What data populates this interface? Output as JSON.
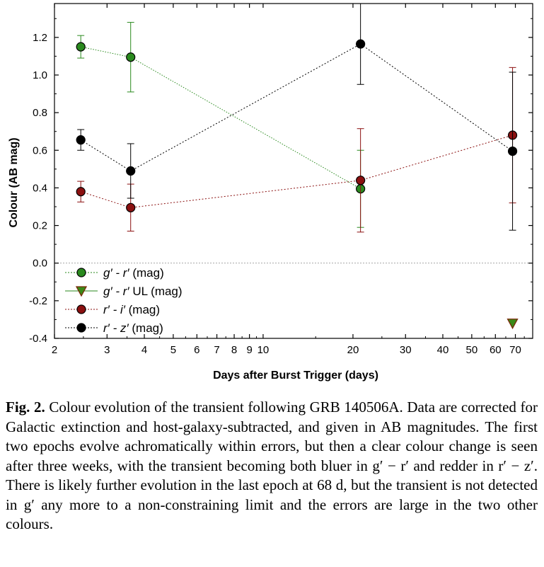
{
  "chart_data": {
    "type": "scatter",
    "xlabel": "Days after Burst Trigger (days)",
    "ylabel": "Colour (AB mag)",
    "xscale": "log",
    "xlim": [
      2,
      80
    ],
    "ylim": [
      -0.4,
      1.38
    ],
    "x_ticks": [
      2,
      3,
      4,
      5,
      6,
      7,
      8,
      9,
      10,
      20,
      30,
      40,
      50,
      60,
      70
    ],
    "y_ticks": [
      -0.4,
      -0.2,
      0.0,
      0.2,
      0.4,
      0.6,
      0.8,
      1.0,
      1.2
    ],
    "y_tick_labels": [
      "-0.4",
      "-0.2",
      "0.0",
      "0.2",
      "0.4",
      "0.6",
      "0.8",
      "1.0",
      "1.2"
    ],
    "zero_line": true,
    "legend_position": "bottom-left",
    "series": [
      {
        "name_parts": [
          "g′ - r′",
          " (mag)"
        ],
        "color": "#2a8a1e",
        "line": "dotted",
        "marker": "circle",
        "x": [
          2.45,
          3.6,
          21.2
        ],
        "y": [
          1.15,
          1.095,
          0.395
        ],
        "yerr": [
          0.06,
          0.185,
          0.205
        ]
      },
      {
        "name_parts": [
          "g′ - r′",
          " UL (mag)"
        ],
        "color": "#2a8a1e",
        "line": "solid",
        "marker": "triangle-down",
        "x": [
          68.5
        ],
        "y": [
          -0.32
        ],
        "yerr": [
          0
        ]
      },
      {
        "name_parts": [
          "r′ - i′",
          " (mag)"
        ],
        "color": "#8b1010",
        "line": "dotted",
        "marker": "circle",
        "x": [
          2.45,
          3.6,
          21.2,
          68.5
        ],
        "y": [
          0.38,
          0.295,
          0.44,
          0.68
        ],
        "yerr": [
          0.055,
          0.125,
          0.275,
          0.36
        ]
      },
      {
        "name_parts": [
          "r′ - z′",
          " (mag)"
        ],
        "color": "#000000",
        "line": "dotted",
        "marker": "circle",
        "x": [
          2.45,
          3.6,
          21.2,
          68.5
        ],
        "y": [
          0.655,
          0.49,
          1.165,
          0.595
        ],
        "yerr": [
          0.055,
          0.145,
          0.215,
          0.42
        ]
      }
    ]
  },
  "caption": {
    "label": "Fig. 2.",
    "text": " Colour evolution of the transient following GRB 140506A. Data are corrected for Galactic extinction and host-galaxy-subtracted, and given in AB magnitudes. The first two epochs evolve achromatically within errors, but then a clear colour change is seen after three weeks, with the transient becoming both bluer in g′ − r′ and redder in r′ − z′. There is likely further evolution in the last epoch at 68 d, but the transient is not detected in g′ any more to a non-constraining limit and the errors are large in the two other colours."
  }
}
